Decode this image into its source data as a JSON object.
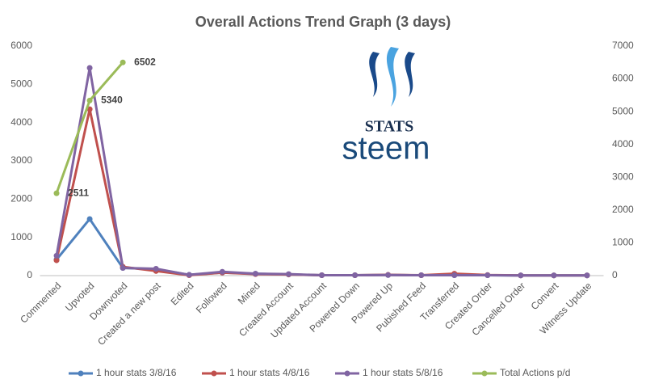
{
  "chart_data": {
    "type": "line",
    "title": "Overall Actions Trend Graph (3 days)",
    "categories": [
      "Commented",
      "Upvoted",
      "Downvoted",
      "Created a new post",
      "Edited",
      "Followed",
      "Mined",
      "Created Account",
      "Updated Account",
      "Powered Down",
      "Powered Up",
      "Pubished Feed",
      "Transferred",
      "Created Order",
      "Cancelled Order",
      "Convert",
      "Witness Update"
    ],
    "series": [
      {
        "name": "1 hour stats 3/8/16",
        "color": "#4f81bd",
        "values": [
          420,
          1480,
          200,
          170,
          20,
          80,
          50,
          30,
          10,
          10,
          15,
          10,
          10,
          10,
          5,
          5,
          5
        ]
      },
      {
        "name": "1 hour stats 4/8/16",
        "color": "#c0504d",
        "values": [
          400,
          4350,
          230,
          120,
          10,
          80,
          40,
          30,
          10,
          10,
          20,
          10,
          50,
          15,
          5,
          5,
          5
        ]
      },
      {
        "name": "1 hour stats 5/8/16",
        "color": "#8064a2",
        "values": [
          520,
          5430,
          200,
          180,
          20,
          100,
          50,
          40,
          10,
          10,
          15,
          10,
          10,
          10,
          5,
          5,
          5
        ]
      },
      {
        "name": "Total Actions p/d",
        "color": "#9bbb59",
        "axis": "y2",
        "values": [
          2511,
          5340,
          6502,
          null,
          null,
          null,
          null,
          null,
          null,
          null,
          null,
          null,
          null,
          null,
          null,
          null,
          null
        ]
      }
    ],
    "ylim": [
      0,
      6000
    ],
    "yticks": [
      0,
      1000,
      2000,
      3000,
      4000,
      5000,
      6000
    ],
    "y2lim": [
      0,
      7000
    ],
    "y2ticks": [
      0,
      1000,
      2000,
      3000,
      4000,
      5000,
      6000,
      7000
    ],
    "grid": false,
    "legend": "bottom",
    "logo": {
      "top": "STATS",
      "bottom": "steem"
    }
  }
}
